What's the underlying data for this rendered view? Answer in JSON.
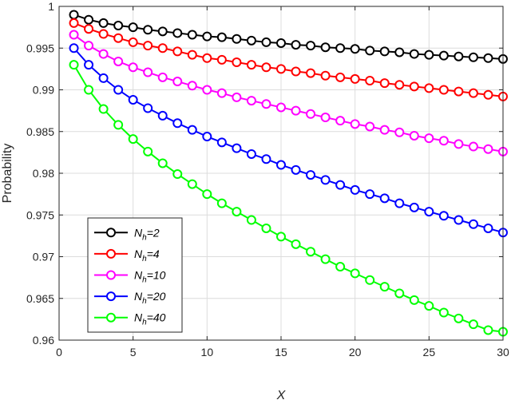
{
  "chart_data": {
    "type": "line",
    "xlabel": "X",
    "ylabel": "Probability",
    "xlim": [
      0,
      30
    ],
    "ylim": [
      0.96,
      1
    ],
    "grid": true,
    "legend_position": "bottom-left",
    "x_ticks": [
      0,
      5,
      10,
      15,
      20,
      25,
      30
    ],
    "x_tick_labels": [
      "0",
      "5",
      "10",
      "15",
      "20",
      "25",
      "30"
    ],
    "y_ticks": [
      0.96,
      0.965,
      0.97,
      0.975,
      0.98,
      0.985,
      0.99,
      0.995,
      1
    ],
    "y_tick_labels": [
      "0.96",
      "0.965",
      "0.97",
      "0.975",
      "0.98",
      "0.985",
      "0.99",
      "0.995",
      "1"
    ],
    "x": [
      1,
      2,
      3,
      4,
      5,
      6,
      7,
      8,
      9,
      10,
      11,
      12,
      13,
      14,
      15,
      16,
      17,
      18,
      19,
      20,
      21,
      22,
      23,
      24,
      25,
      26,
      27,
      28,
      29,
      30
    ],
    "series": [
      {
        "name": "N",
        "subscript": "h",
        "suffix": "=2",
        "color": "#000000",
        "values": [
          0.999,
          0.9984,
          0.998,
          0.9977,
          0.9975,
          0.9972,
          0.997,
          0.9968,
          0.9966,
          0.9964,
          0.9963,
          0.9961,
          0.9959,
          0.9957,
          0.9956,
          0.9954,
          0.9953,
          0.9951,
          0.995,
          0.9949,
          0.9947,
          0.9946,
          0.9945,
          0.9943,
          0.9942,
          0.9941,
          0.994,
          0.9939,
          0.9938,
          0.9937
        ]
      },
      {
        "name": "N",
        "subscript": "h",
        "suffix": "=4",
        "color": "#ff0000",
        "values": [
          0.998,
          0.9973,
          0.9967,
          0.9962,
          0.9957,
          0.9953,
          0.995,
          0.9946,
          0.9942,
          0.9938,
          0.9936,
          0.9933,
          0.993,
          0.9927,
          0.9925,
          0.9922,
          0.992,
          0.9917,
          0.9915,
          0.9913,
          0.9911,
          0.9908,
          0.9906,
          0.9904,
          0.9902,
          0.99,
          0.9898,
          0.9896,
          0.9894,
          0.9892
        ]
      },
      {
        "name": "N",
        "subscript": "h",
        "suffix": "=10",
        "color": "#ff00ff",
        "values": [
          0.9966,
          0.9953,
          0.9943,
          0.9934,
          0.9927,
          0.9921,
          0.9915,
          0.991,
          0.9905,
          0.99,
          0.9896,
          0.9891,
          0.9887,
          0.9883,
          0.9879,
          0.9875,
          0.9871,
          0.9867,
          0.9863,
          0.9859,
          0.9856,
          0.9852,
          0.9849,
          0.9845,
          0.9842,
          0.9839,
          0.9835,
          0.9832,
          0.9829,
          0.9826
        ]
      },
      {
        "name": "N",
        "subscript": "h",
        "suffix": "=20",
        "color": "#0000ff",
        "values": [
          0.995,
          0.993,
          0.9914,
          0.99,
          0.9888,
          0.9878,
          0.9869,
          0.986,
          0.9852,
          0.9844,
          0.9837,
          0.983,
          0.9823,
          0.9817,
          0.981,
          0.9804,
          0.9798,
          0.9792,
          0.9786,
          0.978,
          0.9775,
          0.977,
          0.9764,
          0.9759,
          0.9754,
          0.9749,
          0.9744,
          0.9739,
          0.9734,
          0.9729
        ]
      },
      {
        "name": "N",
        "subscript": "h",
        "suffix": "=40",
        "color": "#00ff00",
        "values": [
          0.993,
          0.99,
          0.9877,
          0.9858,
          0.9841,
          0.9826,
          0.9812,
          0.9799,
          0.9787,
          0.9775,
          0.9764,
          0.9754,
          0.9744,
          0.9734,
          0.9724,
          0.9715,
          0.9706,
          0.9697,
          0.9688,
          0.968,
          0.9672,
          0.9664,
          0.9656,
          0.9648,
          0.9641,
          0.9633,
          0.9626,
          0.9619,
          0.9612,
          0.961
        ]
      }
    ]
  }
}
